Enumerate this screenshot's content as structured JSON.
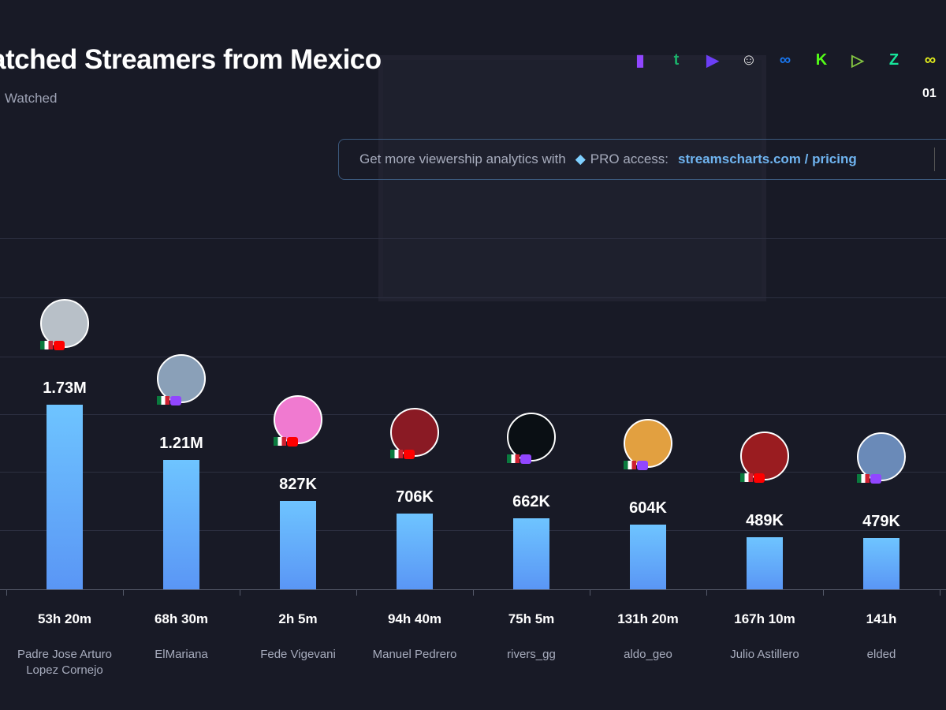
{
  "header": {
    "title": "atched Streamers from Mexico",
    "subtitle": "Watched",
    "page": "01"
  },
  "platforms": [
    {
      "name": "twitch-icon",
      "color": "#9146ff",
      "glyph": "▮"
    },
    {
      "name": "trovo-icon",
      "color": "#1bb06a",
      "glyph": "t"
    },
    {
      "name": "nimo-icon",
      "color": "#6c3ef5",
      "glyph": "▶"
    },
    {
      "name": "bigo-icon",
      "color": "#e8e8e8",
      "glyph": "☺"
    },
    {
      "name": "facebook-gaming-icon",
      "color": "#1877f2",
      "glyph": "∞"
    },
    {
      "name": "kick-icon",
      "color": "#53fc18",
      "glyph": "K"
    },
    {
      "name": "rumble-icon",
      "color": "#85c742",
      "glyph": "▷"
    },
    {
      "name": "zhanqi-icon",
      "color": "#17e59a",
      "glyph": "Z"
    },
    {
      "name": "vk-play-icon",
      "color": "#e5f01c",
      "glyph": "∞"
    }
  ],
  "promo": {
    "text": "Get more viewership analytics with",
    "pro": "PRO access:",
    "link": "streamscharts.com / pricing"
  },
  "colors": {
    "bar": "#62aaf8",
    "youtube": "#ff0000",
    "twitch": "#9146ff"
  },
  "chart_data": {
    "type": "bar",
    "title": "Most Watched Streamers from Mexico",
    "ylabel": "Hours Watched",
    "categories": [
      "Padre Jose Arturo Lopez Cornejo",
      "ElMariana",
      "Fede Vigevani",
      "Manuel Pedrero",
      "rivers_gg",
      "aldo_geo",
      "Julio Astillero",
      "elded"
    ],
    "values": [
      1730000,
      1210000,
      827000,
      706000,
      662000,
      604000,
      489000,
      479000
    ],
    "labels": [
      "1.73M",
      "1.21M",
      "827K",
      "706K",
      "662K",
      "604K",
      "489K",
      "479K"
    ],
    "airtime": [
      "53h 20m",
      "68h 30m",
      "2h 5m",
      "94h 40m",
      "75h 5m",
      "131h 20m",
      "167h 10m",
      "141h"
    ],
    "platform": [
      "youtube",
      "twitch",
      "youtube",
      "youtube",
      "twitch",
      "twitch",
      "youtube",
      "twitch"
    ],
    "ylim": [
      0,
      3000000
    ],
    "grid": true
  }
}
